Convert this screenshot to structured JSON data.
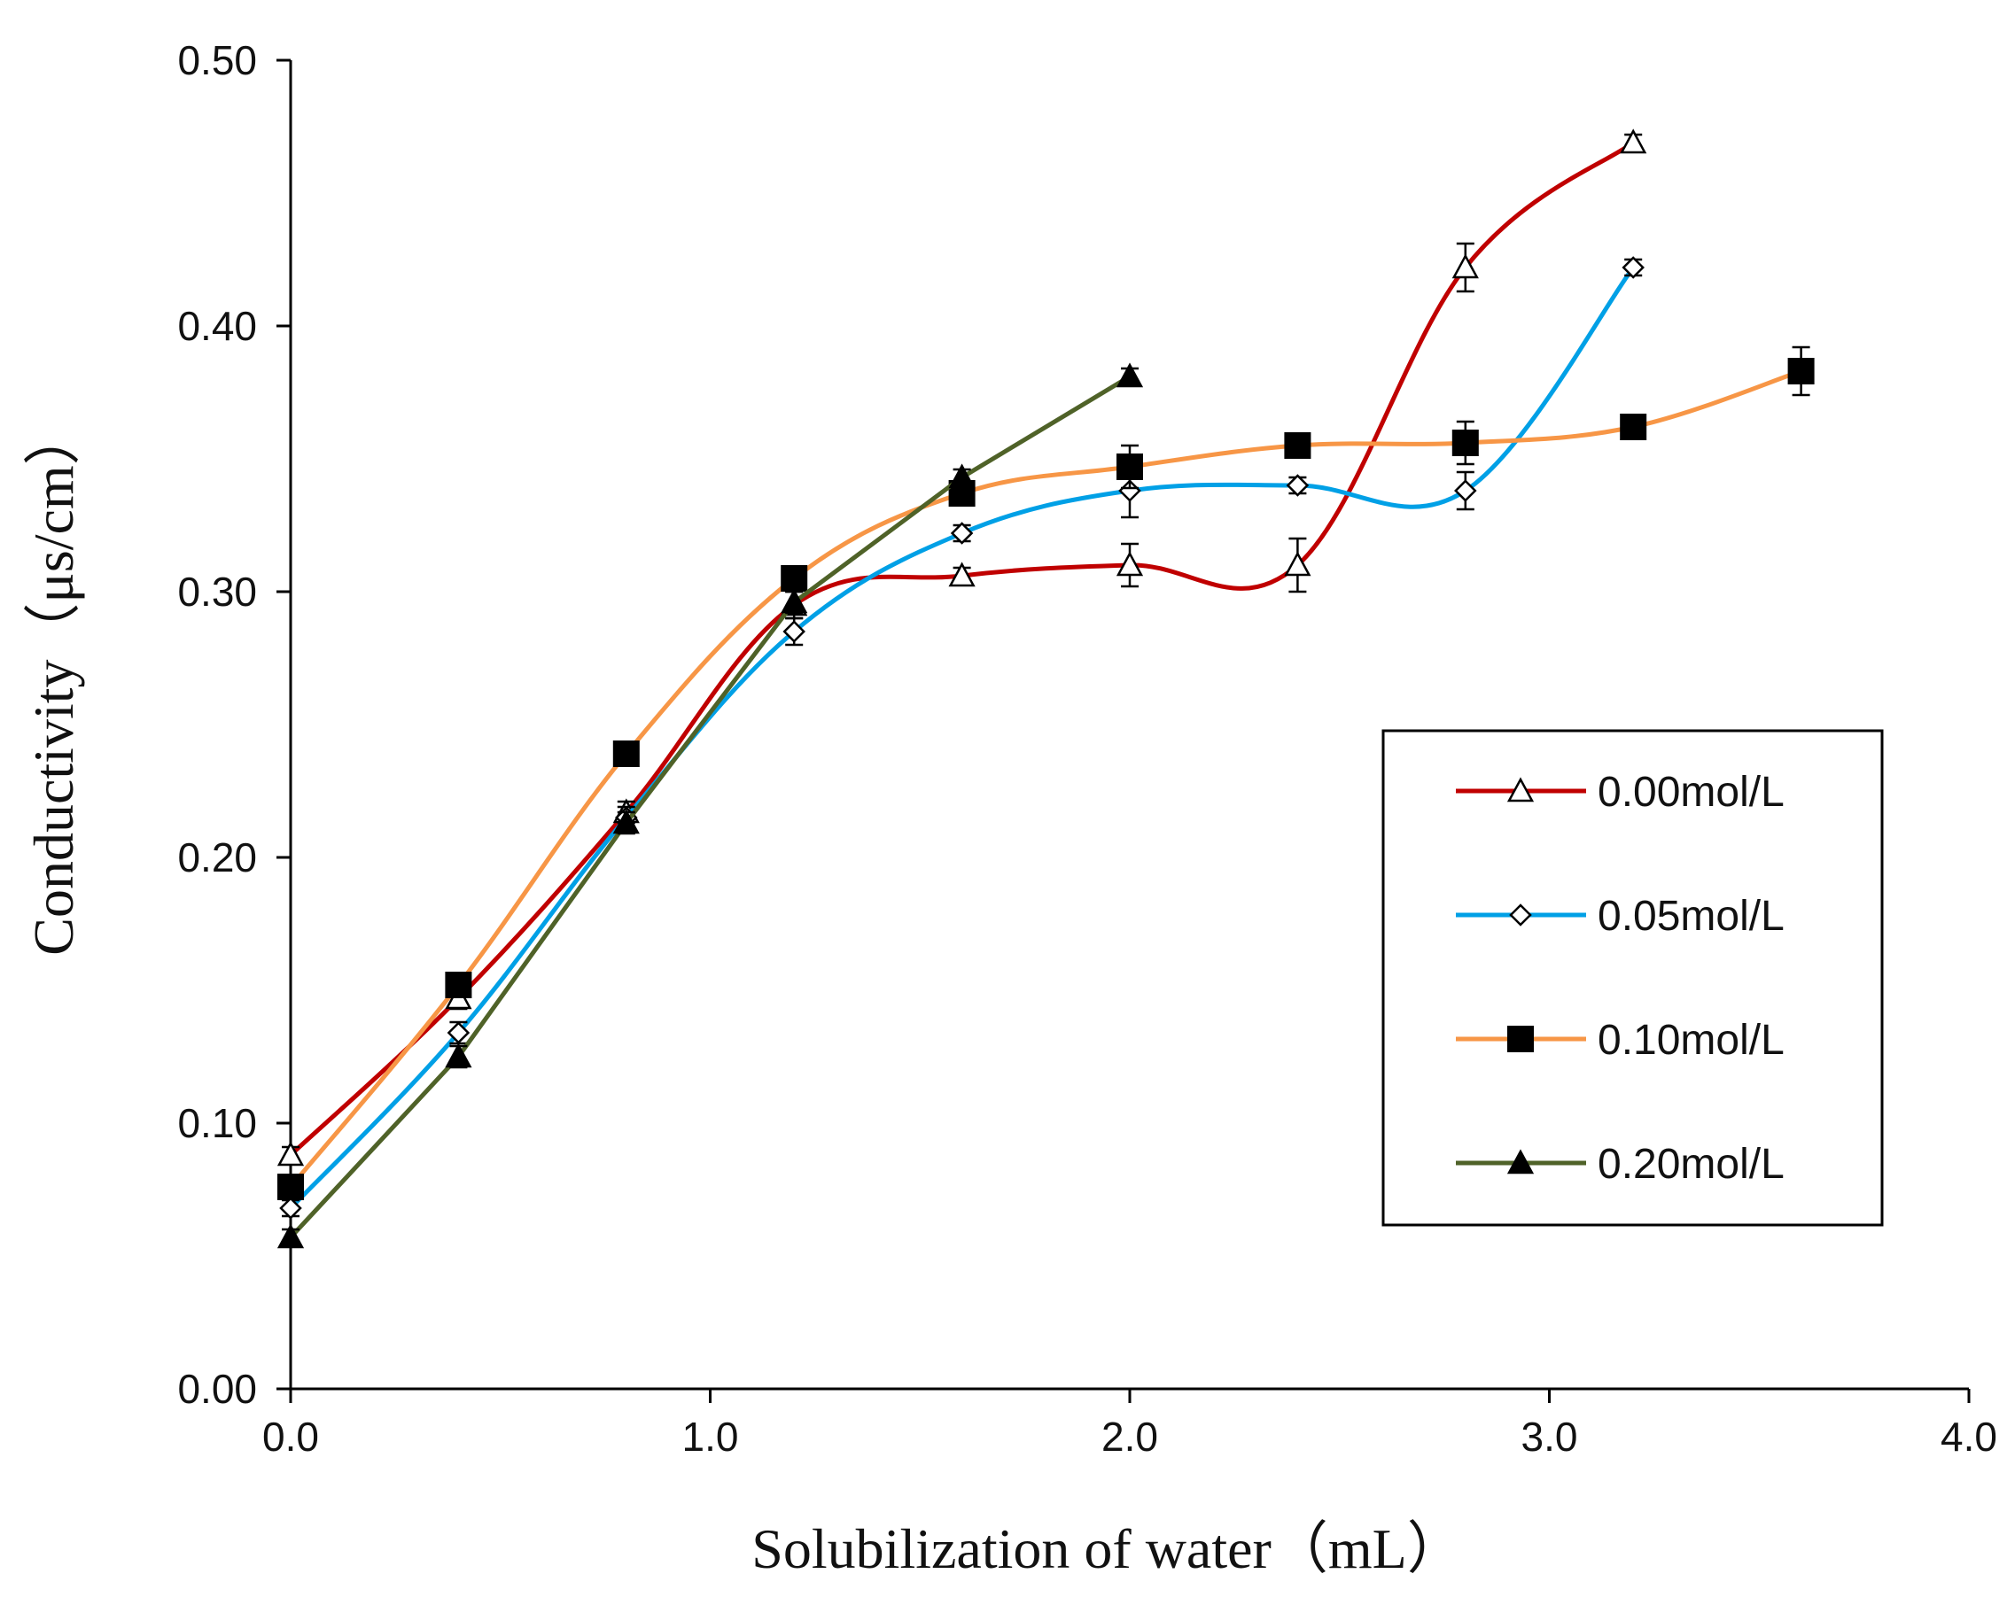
{
  "chart_data": {
    "type": "line",
    "title": "",
    "xlabel": "Solubilization of water（mL）",
    "ylabel": "Conductivity（μs/cm）",
    "xlim": [
      0,
      4.0
    ],
    "ylim": [
      0,
      0.5
    ],
    "xticks": [
      "0.0",
      "1.0",
      "2.0",
      "3.0",
      "4.0"
    ],
    "yticks": [
      "0.00",
      "0.10",
      "0.20",
      "0.30",
      "0.40",
      "0.50"
    ],
    "legend_position": "center-right",
    "grid": false,
    "series": [
      {
        "name": "0.00mol/L",
        "color": "#c00000",
        "marker": "triangle-open",
        "x": [
          0.0,
          0.4,
          0.8,
          1.2,
          1.6,
          2.0,
          2.4,
          2.8,
          3.2
        ],
        "y": [
          0.088,
          0.147,
          0.217,
          0.295,
          0.306,
          0.31,
          0.31,
          0.422,
          0.469
        ],
        "err": [
          0.003,
          0.004,
          0.004,
          0.005,
          0.003,
          0.008,
          0.01,
          0.009,
          0.003
        ]
      },
      {
        "name": "0.05mol/L",
        "color": "#00a0e6",
        "marker": "diamond-open",
        "x": [
          0.0,
          0.4,
          0.8,
          1.2,
          1.6,
          2.0,
          2.4,
          2.8,
          3.2
        ],
        "y": [
          0.068,
          0.134,
          0.215,
          0.285,
          0.322,
          0.338,
          0.34,
          0.338,
          0.422
        ],
        "err": [
          0.003,
          0.004,
          0.004,
          0.005,
          0.003,
          0.01,
          0.003,
          0.007,
          0.003
        ]
      },
      {
        "name": "0.10mol/L",
        "color": "#f79646",
        "marker": "square-filled",
        "x": [
          0.0,
          0.4,
          0.8,
          1.2,
          1.6,
          2.0,
          2.4,
          2.8,
          3.2,
          3.6
        ],
        "y": [
          0.076,
          0.152,
          0.239,
          0.305,
          0.337,
          0.347,
          0.355,
          0.356,
          0.362,
          0.383
        ],
        "err": [
          0.004,
          0.004,
          0.004,
          0.004,
          0.004,
          0.008,
          0.004,
          0.008,
          0.003,
          0.009
        ]
      },
      {
        "name": "0.20mol/L",
        "color": "#4f6228",
        "marker": "triangle-filled",
        "x": [
          0.0,
          0.4,
          0.8,
          1.2,
          1.6,
          2.0
        ],
        "y": [
          0.057,
          0.125,
          0.213,
          0.296,
          0.343,
          0.381
        ],
        "err": [
          0.003,
          0.004,
          0.004,
          0.004,
          0.003,
          0.003
        ]
      }
    ]
  }
}
